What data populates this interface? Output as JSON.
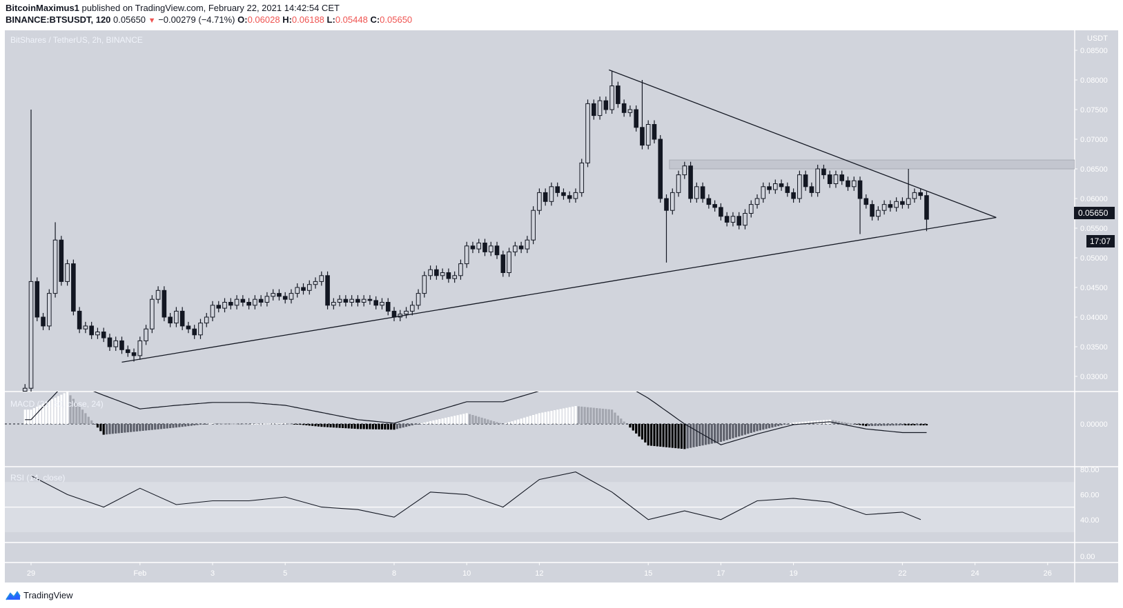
{
  "header": {
    "author": "BitcoinMaximus1",
    "published": "published on TradingView.com, February 22, 2021 14:42:54 CET",
    "symbol": "BINANCE:BTSUSDT, 120",
    "last": "0.05650",
    "change": "−0.00279 (−4.71%)",
    "o_label": "O:",
    "o": "0.06028",
    "h_label": "H:",
    "h": "0.06188",
    "l_label": "L:",
    "l": "0.05448",
    "c_label": "C:",
    "c": "0.05650",
    "down_arrow_icon": "triangle-down"
  },
  "pane_title": "BitShares / TetherUS, 2h, BINANCE",
  "currency": "USDT",
  "last_price_label": "0.05650",
  "countdown": "17:07",
  "macd_title": "MACD (21, 50, close, 24)",
  "rsi_title": "RSI (14, close)",
  "footer": {
    "brand": "TradingView"
  },
  "colors": {
    "background": "#d1d4dc",
    "down_candle": "#131722",
    "up_candle": "#d1d4dc",
    "down_arrow": "#ef5350",
    "logo": "#2962ff"
  },
  "chart_data": {
    "type": "candlestick",
    "price_axis": {
      "ticks": [
        "0.08500",
        "0.08000",
        "0.07500",
        "0.07000",
        "0.06500",
        "0.06000",
        "0.05500",
        "0.05000",
        "0.04500",
        "0.04000",
        "0.03500",
        "0.03000"
      ],
      "range": [
        0.03,
        0.085
      ]
    },
    "time_axis": {
      "ticks": [
        {
          "label": "29",
          "date": "2021-01-29"
        },
        {
          "label": "Feb",
          "date": "2021-02-01"
        },
        {
          "label": "3",
          "date": "2021-02-03"
        },
        {
          "label": "5",
          "date": "2021-02-05"
        },
        {
          "label": "8",
          "date": "2021-02-08"
        },
        {
          "label": "10",
          "date": "2021-02-10"
        },
        {
          "label": "12",
          "date": "2021-02-12"
        },
        {
          "label": "15",
          "date": "2021-02-15"
        },
        {
          "label": "17",
          "date": "2021-02-17"
        },
        {
          "label": "19",
          "date": "2021-02-19"
        },
        {
          "label": "22",
          "date": "2021-02-22"
        },
        {
          "label": "24",
          "date": "2021-02-24"
        },
        {
          "label": "26",
          "date": "2021-02-26"
        }
      ]
    },
    "candle_start": "2021-01-28 20:00",
    "candle_interval_hours": 4,
    "closes": [
      0.028,
      0.046,
      0.04,
      0.0385,
      0.044,
      0.053,
      0.046,
      0.049,
      0.041,
      0.038,
      0.0385,
      0.037,
      0.0375,
      0.0365,
      0.035,
      0.036,
      0.0345,
      0.034,
      0.0335,
      0.036,
      0.038,
      0.043,
      0.0445,
      0.04,
      0.039,
      0.041,
      0.0385,
      0.038,
      0.037,
      0.039,
      0.04,
      0.042,
      0.0415,
      0.0425,
      0.042,
      0.043,
      0.0425,
      0.042,
      0.043,
      0.0425,
      0.0435,
      0.044,
      0.0435,
      0.043,
      0.044,
      0.045,
      0.0445,
      0.0455,
      0.046,
      0.047,
      0.042,
      0.0425,
      0.043,
      0.0425,
      0.043,
      0.0425,
      0.043,
      0.0428,
      0.042,
      0.0425,
      0.041,
      0.04,
      0.0405,
      0.041,
      0.042,
      0.044,
      0.047,
      0.048,
      0.047,
      0.0475,
      0.0465,
      0.047,
      0.049,
      0.052,
      0.0515,
      0.0525,
      0.051,
      0.052,
      0.0505,
      0.0475,
      0.051,
      0.052,
      0.0515,
      0.053,
      0.058,
      0.061,
      0.0595,
      0.062,
      0.061,
      0.0605,
      0.06,
      0.061,
      0.066,
      0.076,
      0.074,
      0.0765,
      0.075,
      0.079,
      0.076,
      0.0745,
      0.075,
      0.072,
      0.069,
      0.0725,
      0.07,
      0.06,
      0.058,
      0.061,
      0.064,
      0.0655,
      0.06,
      0.062,
      0.06,
      0.059,
      0.0585,
      0.057,
      0.056,
      0.057,
      0.0555,
      0.0575,
      0.059,
      0.06,
      0.062,
      0.0615,
      0.0625,
      0.062,
      0.061,
      0.06,
      0.064,
      0.062,
      0.061,
      0.065,
      0.064,
      0.0625,
      0.064,
      0.063,
      0.062,
      0.063,
      0.06,
      0.059,
      0.057,
      0.058,
      0.059,
      0.0585,
      0.0595,
      0.059,
      0.06,
      0.061,
      0.0605,
      0.0565
    ],
    "wick_extremes": [
      {
        "date": "2021-01-29 00:00",
        "high": 0.075
      },
      {
        "date": "2021-01-29 16:00",
        "high": 0.056
      },
      {
        "date": "2021-01-31 20:00",
        "low": 0.0325
      },
      {
        "date": "2021-02-14 00:00",
        "high": 0.0815
      },
      {
        "date": "2021-02-14 20:00",
        "high": 0.08
      },
      {
        "date": "2021-02-15 12:00",
        "low": 0.0492
      },
      {
        "date": "2021-02-20 20:00",
        "low": 0.054
      },
      {
        "date": "2021-02-22 04:00",
        "high": 0.065
      },
      {
        "date": "2021-02-22 16:00",
        "low": 0.0545
      }
    ],
    "trendlines": [
      {
        "name": "support",
        "from": [
          "2021-01-31 12:00",
          0.0324
        ],
        "to": [
          "2021-02-24 14:00",
          0.0568
        ]
      },
      {
        "name": "resistance",
        "from": [
          "2021-02-13 22:00",
          0.0817
        ],
        "to": [
          "2021-02-24 14:00",
          0.0568
        ]
      }
    ],
    "zone": {
      "from_date": "2021-02-15 14:00",
      "low": 0.065,
      "high": 0.0665
    },
    "macd": {
      "axis_ticks": [
        "0.00000"
      ],
      "daily_dates_start": "2021-01-29",
      "line": [
        0.0006,
        0.006,
        0.004,
        0.0021,
        0.0026,
        0.003,
        0.003,
        0.0026,
        0.0016,
        0.0006,
        0.0001,
        0.0016,
        0.0031,
        0.0031,
        0.0046,
        0.0065,
        0.0065,
        0.0036,
        0.0,
        -0.0029,
        -0.0014,
        -0.0001,
        0.0003,
        -0.0007,
        -0.0012
      ],
      "histogram": [
        0.002,
        0.0045,
        -0.0015,
        -0.001,
        -0.0005,
        0.0001,
        0.0,
        0.0001,
        -0.0004,
        -0.0007,
        -0.0008,
        0.0004,
        0.0015,
        0.0,
        0.0015,
        0.0025,
        0.002,
        -0.003,
        -0.0035,
        -0.0025,
        -0.001,
        0.0002,
        0.0006,
        -0.0003,
        -0.0002
      ]
    },
    "rsi": {
      "axis_ticks": [
        "80.00",
        "60.00",
        "40.00",
        "0.00"
      ],
      "band": [
        30,
        70
      ],
      "midline": 50,
      "daily_dates_start": "2021-01-29",
      "values": [
        75,
        60,
        50,
        65,
        52,
        55,
        55,
        58,
        50,
        48,
        42,
        62,
        60,
        50,
        72,
        78,
        62,
        40,
        47,
        40,
        55,
        57,
        54,
        44,
        46,
        40
      ]
    }
  }
}
